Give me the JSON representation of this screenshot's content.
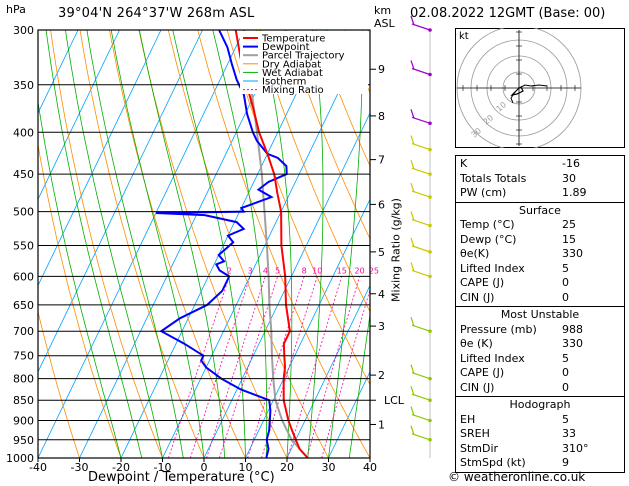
{
  "header": {
    "hpa_unit": "hPa",
    "location": "39°04'N  264°37'W  268m  ASL",
    "km_unit": "km",
    "asl_unit": "ASL",
    "datetime": "02.08.2022  12GMT  (Base: 00)"
  },
  "footer": {
    "xlabel": "Dewpoint / Temperature (°C)",
    "credit": "© weatheronline.co.uk",
    "mixing_ratio_label": "Mixing Ratio (g/kg)"
  },
  "legend": [
    "Temperature",
    "Dewpoint",
    "Parcel Trajectory",
    "Dry Adiabat",
    "Wet Adiabat",
    "Isotherm",
    "Mixing Ratio"
  ],
  "colors": {
    "temperature": "#ff0000",
    "dewpoint": "#0000ff",
    "parcel": "#a0a0a0",
    "dry_adiabat": "#ff8c00",
    "wet_adiabat": "#00b000",
    "isotherm": "#00a0ff",
    "mixing_ratio": "#ff00a0",
    "wind": "#a0c800"
  },
  "chart_data": {
    "type": "line",
    "title": "39°04'N  264°37'W  268m  ASL",
    "xlabel": "Dewpoint / Temperature (°C)",
    "ylabel": "hPa",
    "xlim": [
      -40,
      40
    ],
    "ylim": [
      1000,
      300
    ],
    "x_ticks": [
      -40,
      -30,
      -20,
      -10,
      0,
      10,
      20,
      30,
      40
    ],
    "pressure_ticks": [
      300,
      350,
      400,
      450,
      500,
      550,
      600,
      650,
      700,
      750,
      800,
      850,
      900,
      950,
      1000
    ],
    "km_ticks": [
      {
        "km": "1",
        "p": 910
      },
      {
        "km": "2",
        "p": 792
      },
      {
        "km": "3",
        "p": 690
      },
      {
        "km": "4",
        "p": 630
      },
      {
        "km": "5",
        "p": 560
      },
      {
        "km": "6",
        "p": 490
      },
      {
        "km": "7",
        "p": 432
      },
      {
        "km": "8",
        "p": 382
      },
      {
        "km": "9",
        "p": 335
      }
    ],
    "lcl": {
      "label": "LCL",
      "p": 850
    },
    "mixing_ratio_labels": [
      {
        "label": "2",
        "w": 2
      },
      {
        "label": "3",
        "w": 3
      },
      {
        "label": "4",
        "w": 4
      },
      {
        "label": "5",
        "w": 5
      },
      {
        "label": "8",
        "w": 8
      },
      {
        "label": "10",
        "w": 10
      },
      {
        "label": "15",
        "w": 15
      },
      {
        "label": "20",
        "w": 20
      },
      {
        "label": "25",
        "w": 25
      }
    ],
    "series": [
      {
        "name": "Temperature",
        "points": [
          [
            1000,
            25
          ],
          [
            975,
            22
          ],
          [
            950,
            20
          ],
          [
            925,
            18
          ],
          [
            900,
            16
          ],
          [
            850,
            12.5
          ],
          [
            800,
            10
          ],
          [
            775,
            9
          ],
          [
            750,
            7.5
          ],
          [
            725,
            6
          ],
          [
            700,
            6
          ],
          [
            650,
            2
          ],
          [
            600,
            -1.5
          ],
          [
            550,
            -6
          ],
          [
            500,
            -10
          ],
          [
            475,
            -13
          ],
          [
            450,
            -16
          ],
          [
            425,
            -20
          ],
          [
            400,
            -24.5
          ],
          [
            375,
            -28.5
          ],
          [
            350,
            -33
          ],
          [
            325,
            -37.5
          ],
          [
            300,
            -42
          ]
        ]
      },
      {
        "name": "Dewpoint",
        "points": [
          [
            1000,
            15
          ],
          [
            975,
            14.5
          ],
          [
            950,
            13
          ],
          [
            925,
            12.5
          ],
          [
            900,
            11.5
          ],
          [
            875,
            10.5
          ],
          [
            850,
            9
          ],
          [
            825,
            1
          ],
          [
            800,
            -5
          ],
          [
            775,
            -10
          ],
          [
            760,
            -12
          ],
          [
            750,
            -12
          ],
          [
            725,
            -18
          ],
          [
            700,
            -25
          ],
          [
            675,
            -22
          ],
          [
            650,
            -17
          ],
          [
            625,
            -15
          ],
          [
            600,
            -15
          ],
          [
            590,
            -18
          ],
          [
            580,
            -19.5
          ],
          [
            575,
            -18
          ],
          [
            565,
            -20
          ],
          [
            555,
            -19
          ],
          [
            545,
            -18
          ],
          [
            535,
            -20
          ],
          [
            525,
            -17
          ],
          [
            515,
            -19.5
          ],
          [
            505,
            -28
          ],
          [
            502,
            -40
          ],
          [
            500,
            -19
          ],
          [
            495,
            -20
          ],
          [
            490,
            -18
          ],
          [
            480,
            -14
          ],
          [
            470,
            -18
          ],
          [
            460,
            -16.5
          ],
          [
            450,
            -13
          ],
          [
            440,
            -14
          ],
          [
            430,
            -17
          ],
          [
            425,
            -20
          ],
          [
            410,
            -24
          ],
          [
            400,
            -26
          ],
          [
            380,
            -29.5
          ],
          [
            360,
            -32.5
          ],
          [
            345,
            -36
          ],
          [
            330,
            -39
          ],
          [
            315,
            -42
          ],
          [
            300,
            -46
          ]
        ]
      },
      {
        "name": "Parcel Trajectory",
        "points": [
          [
            1000,
            25
          ],
          [
            950,
            19
          ],
          [
            900,
            14.5
          ],
          [
            850,
            10.5
          ],
          [
            800,
            7.5
          ],
          [
            750,
            4.5
          ],
          [
            700,
            1.5
          ],
          [
            650,
            -2
          ],
          [
            600,
            -5.5
          ],
          [
            550,
            -9.5
          ],
          [
            500,
            -14
          ],
          [
            450,
            -19
          ],
          [
            400,
            -25
          ],
          [
            350,
            -32
          ],
          [
            300,
            -40
          ]
        ]
      }
    ],
    "wind_profile_pressures": [
      300,
      340,
      390,
      420,
      450,
      480,
      520,
      560,
      600,
      700,
      800,
      850,
      900,
      950
    ]
  },
  "hodograph": {
    "label_kt": "kt"
  },
  "indices": {
    "block1": [
      {
        "label": "K",
        "value": "-16"
      },
      {
        "label": "Totals Totals",
        "value": "30"
      },
      {
        "label": "PW (cm)",
        "value": "1.89"
      }
    ],
    "surface": {
      "title": "Surface",
      "rows": [
        {
          "label": "Temp (°C)",
          "value": "25"
        },
        {
          "label": "Dewp (°C)",
          "value": "15"
        },
        {
          "label": "θe(K)",
          "value": "330"
        },
        {
          "label": "Lifted Index",
          "value": "5"
        },
        {
          "label": "CAPE (J)",
          "value": "0"
        },
        {
          "label": "CIN (J)",
          "value": "0"
        }
      ]
    },
    "most_unstable": {
      "title": "Most Unstable",
      "rows": [
        {
          "label": "Pressure (mb)",
          "value": "988"
        },
        {
          "label": "θe (K)",
          "value": "330"
        },
        {
          "label": "Lifted Index",
          "value": "5"
        },
        {
          "label": "CAPE (J)",
          "value": "0"
        },
        {
          "label": "CIN (J)",
          "value": "0"
        }
      ]
    },
    "hodograph": {
      "title": "Hodograph",
      "rows": [
        {
          "label": "EH",
          "value": "5"
        },
        {
          "label": "SREH",
          "value": "33"
        },
        {
          "label": "StmDir",
          "value": "310°"
        },
        {
          "label": "StmSpd (kt)",
          "value": "9"
        }
      ]
    }
  }
}
